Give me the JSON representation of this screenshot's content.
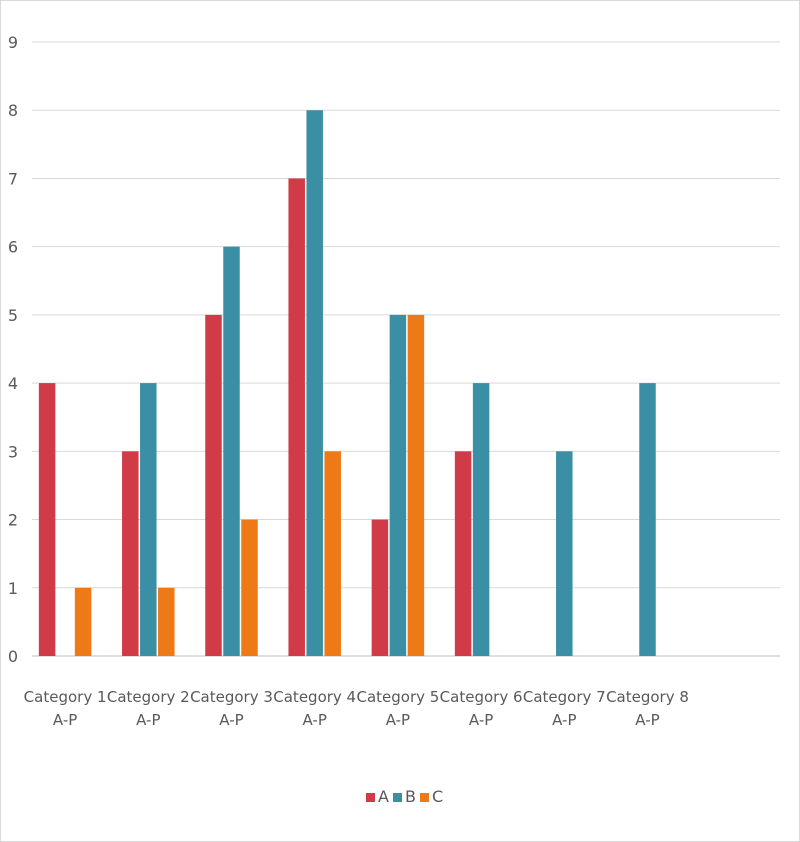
{
  "chart_data": {
    "type": "bar",
    "categories": [
      [
        "Category 1",
        "A-P"
      ],
      [
        "Category 2",
        "A-P"
      ],
      [
        "Category 3",
        "A-P"
      ],
      [
        "Category 4",
        "A-P"
      ],
      [
        "Category 5",
        "A-P"
      ],
      [
        "Category 6",
        "A-P"
      ],
      [
        "Category 7",
        "A-P"
      ],
      [
        "Category 8",
        "A-P"
      ]
    ],
    "series": [
      {
        "name": "A",
        "color": "#d13b47",
        "values": [
          4,
          3,
          5,
          7,
          2,
          3,
          null,
          null
        ]
      },
      {
        "name": "B",
        "color": "#3a8fa5",
        "values": [
          null,
          4,
          6,
          8,
          5,
          4,
          3,
          4
        ]
      },
      {
        "name": "C",
        "color": "#ee7a17",
        "values": [
          1,
          1,
          2,
          3,
          5,
          null,
          null,
          null
        ]
      }
    ],
    "yticks": [
      "0",
      "1",
      "2",
      "3",
      "4",
      "5",
      "6",
      "7",
      "8",
      "9"
    ],
    "ylim": [
      0,
      9
    ],
    "title": "",
    "xlabel": "",
    "ylabel": "",
    "grid": true,
    "legend_position": "bottom"
  }
}
